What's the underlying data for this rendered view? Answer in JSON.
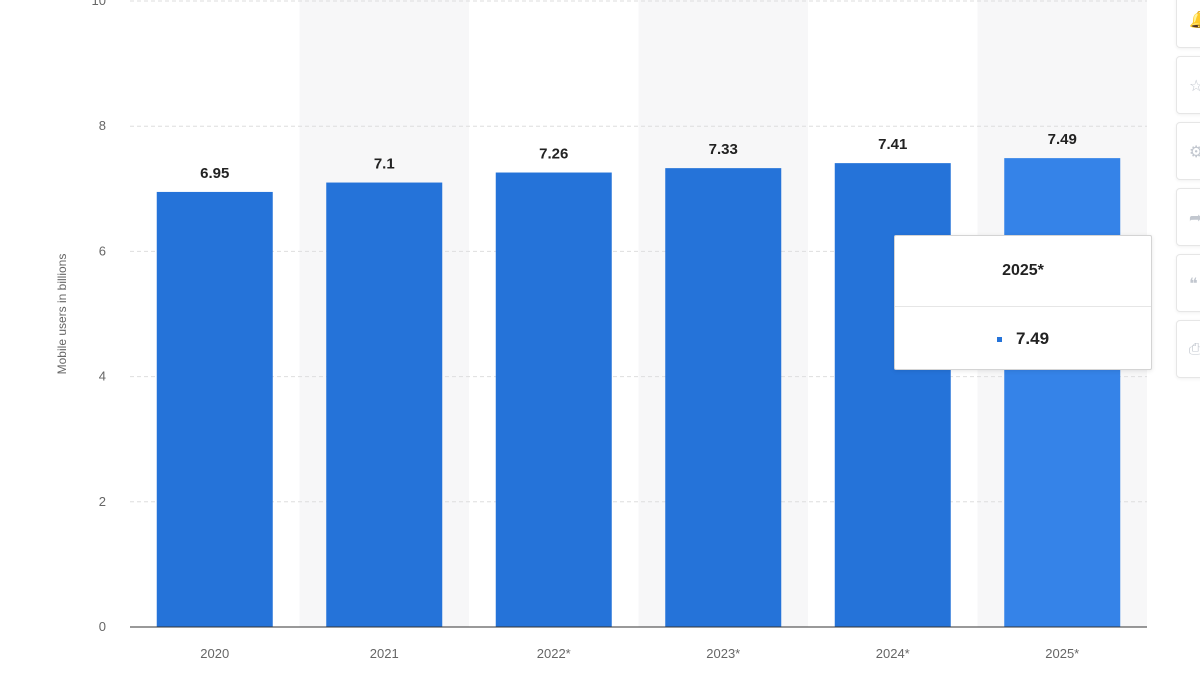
{
  "chart_data": {
    "type": "bar",
    "categories": [
      "2020",
      "2021",
      "2022*",
      "2023*",
      "2024*",
      "2025*"
    ],
    "values": [
      6.95,
      7.1,
      7.26,
      7.33,
      7.41,
      7.49
    ],
    "value_labels": [
      "6.95",
      "7.1",
      "7.26",
      "7.33",
      "7.41",
      "7.49"
    ],
    "ylabel": "Mobile users in billions",
    "ylim": [
      0,
      10
    ],
    "yticks": [
      0,
      2,
      4,
      6,
      8,
      10
    ],
    "grid": true,
    "highlighted_category": "2025*",
    "colors": {
      "bar": "#2573d9",
      "bar_highlight": "#3583e8",
      "alt_column_band": "#f7f7f8",
      "grid": "#dedede",
      "axis": "#333333"
    }
  },
  "tooltip": {
    "title": "2025*",
    "value": "7.49"
  },
  "toolbar": {
    "icons": [
      "bell-icon",
      "star-icon",
      "gear-icon",
      "share-icon",
      "quote-icon",
      "print-icon"
    ]
  }
}
